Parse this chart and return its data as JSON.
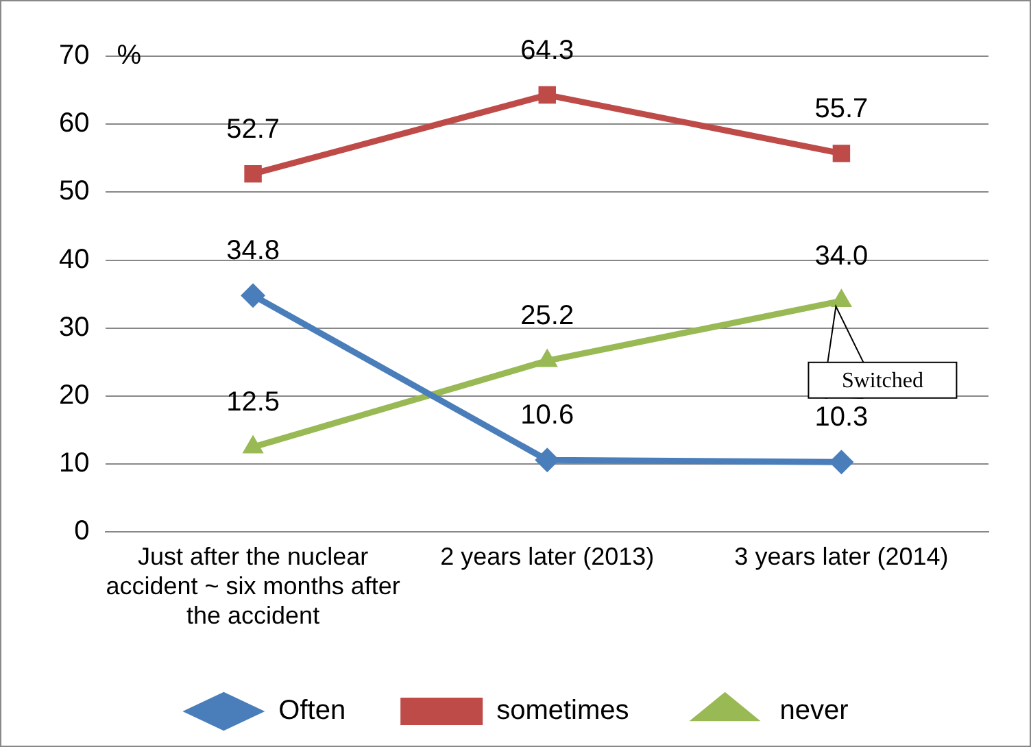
{
  "chart_data": {
    "type": "line",
    "ylabel": "%",
    "categories": [
      "Just after the nuclear accident ~ six months after the accident",
      "2 years later (2013)",
      "3 years later (2014)"
    ],
    "series": [
      {
        "name": "Often",
        "color": "#4a7ebb",
        "values": [
          34.8,
          10.6,
          10.3
        ],
        "value_labels": [
          "34.8",
          "10.6",
          "10.3"
        ],
        "marker": "diamond"
      },
      {
        "name": "sometimes",
        "color": "#be4b48",
        "values": [
          52.7,
          64.3,
          55.7
        ],
        "value_labels": [
          "52.7",
          "64.3",
          "55.7"
        ],
        "marker": "square"
      },
      {
        "name": "never",
        "color": "#98b954",
        "values": [
          12.5,
          25.2,
          34.0
        ],
        "value_labels": [
          "12.5",
          "25.2",
          "34.0"
        ],
        "marker": "triangle"
      }
    ],
    "ylim": [
      0,
      70
    ],
    "yticks": [
      0,
      10,
      20,
      30,
      40,
      50,
      60,
      70
    ],
    "grid": "y",
    "legend": "bottom",
    "line_style": "solid",
    "annotations": [
      "Switched"
    ]
  }
}
